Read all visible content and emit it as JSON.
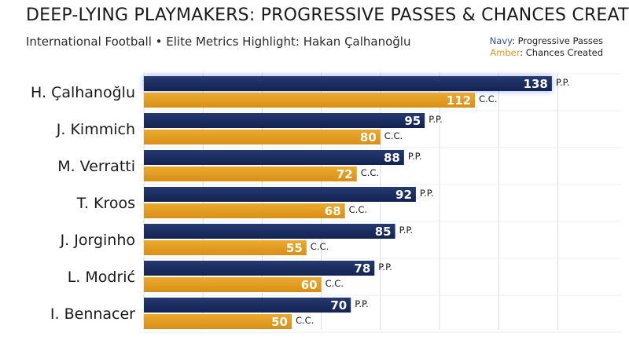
{
  "header": {
    "title": "DEEP-LYING PLAYMAKERS: PROGRESSIVE PASSES & CHANCES CREATED",
    "subtitle": "International Football • Elite Metrics Highlight: Hakan Çalhanoğlu"
  },
  "legend": {
    "navy_word": "Navy",
    "navy_text": ": Progressive Passes",
    "amber_word": "Amber",
    "amber_text": ": Chances Created"
  },
  "colors": {
    "navy": "#1b2d5c",
    "amber": "#e29a1e",
    "grid": "#dcdcdc"
  },
  "chart_data": {
    "type": "bar",
    "orientation": "horizontal",
    "title": "DEEP-LYING PLAYMAKERS: PROGRESSIVE PASSES & CHANCES CREATED",
    "subtitle": "International Football • Elite Metrics Highlight: Hakan Çalhanoğlu",
    "categories": [
      "H. Çalhanoğlu",
      "J. Kimmich",
      "M. Verratti",
      "T. Kroos",
      "J. Jorginho",
      "L. Modrić",
      "I. Bennacer"
    ],
    "series": [
      {
        "name": "Progressive Passes",
        "tag": "P.P.",
        "values": [
          138,
          95,
          88,
          92,
          85,
          78,
          70
        ]
      },
      {
        "name": "Chances Created",
        "tag": "C.C.",
        "values": [
          112,
          80,
          72,
          68,
          55,
          60,
          50
        ]
      }
    ],
    "xlim": [
      0,
      150
    ],
    "grid": true,
    "legend_position": "top-right",
    "highlight": "H. Çalhanoğlu"
  }
}
